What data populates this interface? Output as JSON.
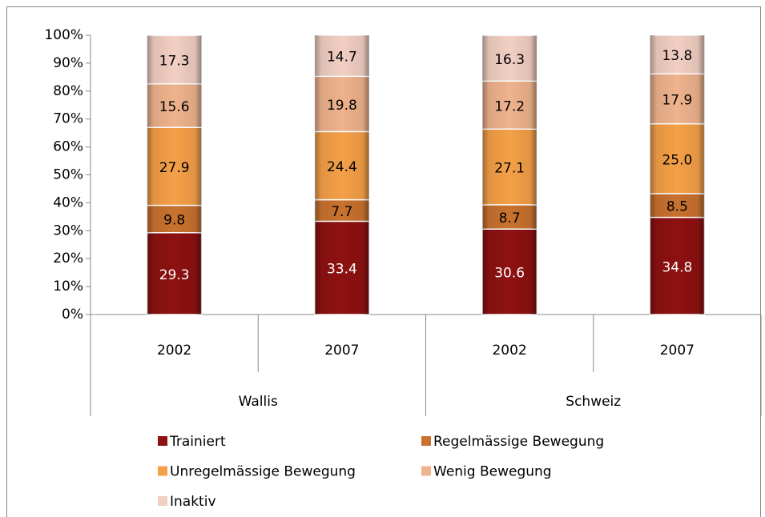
{
  "chart_data": {
    "type": "stacked_bar",
    "categories": [
      "2002",
      "2007",
      "2002",
      "2007"
    ],
    "groups": [
      "Wallis",
      "Schweiz"
    ],
    "ylim": [
      0,
      100
    ],
    "yticks": [
      {
        "value": 0,
        "label": "0%"
      },
      {
        "value": 10,
        "label": "10%"
      },
      {
        "value": 20,
        "label": "20%"
      },
      {
        "value": 30,
        "label": "30%"
      },
      {
        "value": 40,
        "label": "40%"
      },
      {
        "value": 50,
        "label": "50%"
      },
      {
        "value": 60,
        "label": "60%"
      },
      {
        "value": 70,
        "label": "70%"
      },
      {
        "value": 80,
        "label": "80%"
      },
      {
        "value": 90,
        "label": "90%"
      },
      {
        "value": 100,
        "label": "100%"
      }
    ],
    "grid": false,
    "legend": "bottom",
    "series": [
      {
        "name": "Trainiert",
        "color": "#8e1111",
        "values": [
          29.3,
          33.4,
          30.6,
          34.8
        ]
      },
      {
        "name": "Regelmässige Bewegung",
        "color": "#c9722f",
        "values": [
          9.8,
          7.7,
          8.7,
          8.5
        ]
      },
      {
        "name": "Unregelmässige Bewegung",
        "color": "#f5a048",
        "values": [
          27.9,
          24.4,
          27.1,
          25.0
        ],
        "value_labels": [
          "27.9",
          "24.4",
          "27.1",
          "25.0"
        ]
      },
      {
        "name": "Wenig Bewegung",
        "color": "#efb38d",
        "values": [
          15.6,
          19.8,
          17.2,
          17.9
        ]
      },
      {
        "name": "Inaktiv",
        "color": "#f2cfc3",
        "values": [
          17.3,
          14.7,
          16.3,
          13.8
        ]
      }
    ]
  }
}
